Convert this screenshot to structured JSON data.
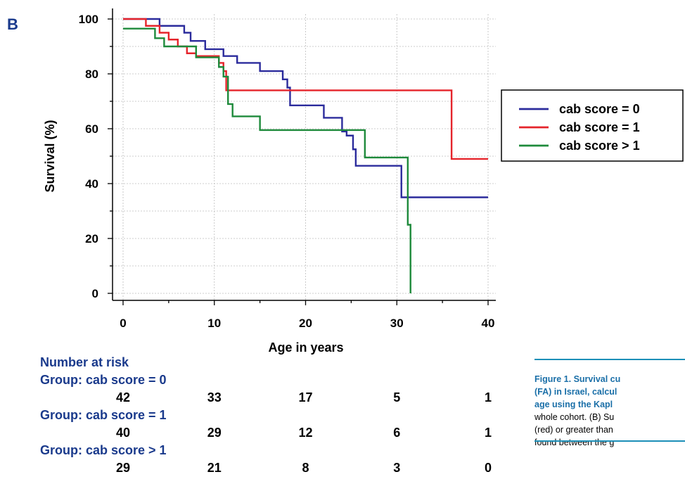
{
  "panel_label": "B",
  "colors": {
    "cab0": "#2b2b9c",
    "cab1": "#e5242b",
    "cab_gt1": "#1e8a3b",
    "risk_title": "#1a3a8c",
    "caption_accent": "#1a6fa8",
    "rule": "#1c8fb8"
  },
  "chart_data": {
    "type": "line",
    "title": "",
    "xlabel": "Age in years",
    "ylabel": "Survival (%)",
    "xlim": [
      0,
      40
    ],
    "ylim": [
      0,
      100
    ],
    "xticks": [
      "0",
      "10",
      "20",
      "30",
      "40"
    ],
    "yticks": [
      "0",
      "20",
      "40",
      "60",
      "80",
      "100"
    ],
    "grid": true,
    "legend_position": "right",
    "series": [
      {
        "name": "cab score = 0",
        "color": "#2b2b9c",
        "x": [
          0,
          4,
          6.7,
          7.4,
          9,
          11,
          12.5,
          15,
          17.5,
          18,
          18.3,
          22,
          24,
          24.5,
          25.2,
          25.5,
          30.5,
          40
        ],
        "y": [
          100,
          97.5,
          95,
          92,
          89,
          86.5,
          84,
          81,
          78,
          75,
          68.5,
          64,
          59,
          57.5,
          52.5,
          46.5,
          35,
          35
        ]
      },
      {
        "name": "cab score = 1",
        "color": "#e5242b",
        "x": [
          0,
          2.5,
          4,
          5,
          6,
          7,
          8,
          10.5,
          11,
          11.3,
          36,
          40
        ],
        "y": [
          100,
          97.5,
          95,
          92.5,
          90,
          87.5,
          86.5,
          84,
          81,
          74,
          49,
          49
        ]
      },
      {
        "name": "cab score > 1",
        "color": "#1e8a3b",
        "x": [
          0,
          3.5,
          4.5,
          8,
          10.5,
          11,
          11.5,
          12,
          15,
          26.5,
          31.2,
          31.5,
          40
        ],
        "y": [
          96.5,
          93,
          90,
          86,
          82.5,
          79,
          69,
          64.5,
          59.5,
          49.5,
          25,
          0,
          0
        ],
        "end_x": 31.5
      }
    ]
  },
  "risk_table": {
    "title": "Number at risk",
    "groups": [
      {
        "label": "Group: cab score = 0",
        "values": [
          "42",
          "33",
          "17",
          "5",
          "1"
        ]
      },
      {
        "label": "Group: cab score = 1",
        "values": [
          "40",
          "29",
          "12",
          "6",
          "1"
        ]
      },
      {
        "label": "Group: cab score > 1",
        "values": [
          "29",
          "21",
          "8",
          "3",
          "0"
        ]
      }
    ]
  },
  "caption": {
    "line1": "Figure 1. Survival cu",
    "line2": "(FA) in Israel, calcul",
    "line3": "age using the Kapl",
    "line4": "whole cohort. (B) Su",
    "line5": "(red) or greater than",
    "line6": "found between the g"
  }
}
